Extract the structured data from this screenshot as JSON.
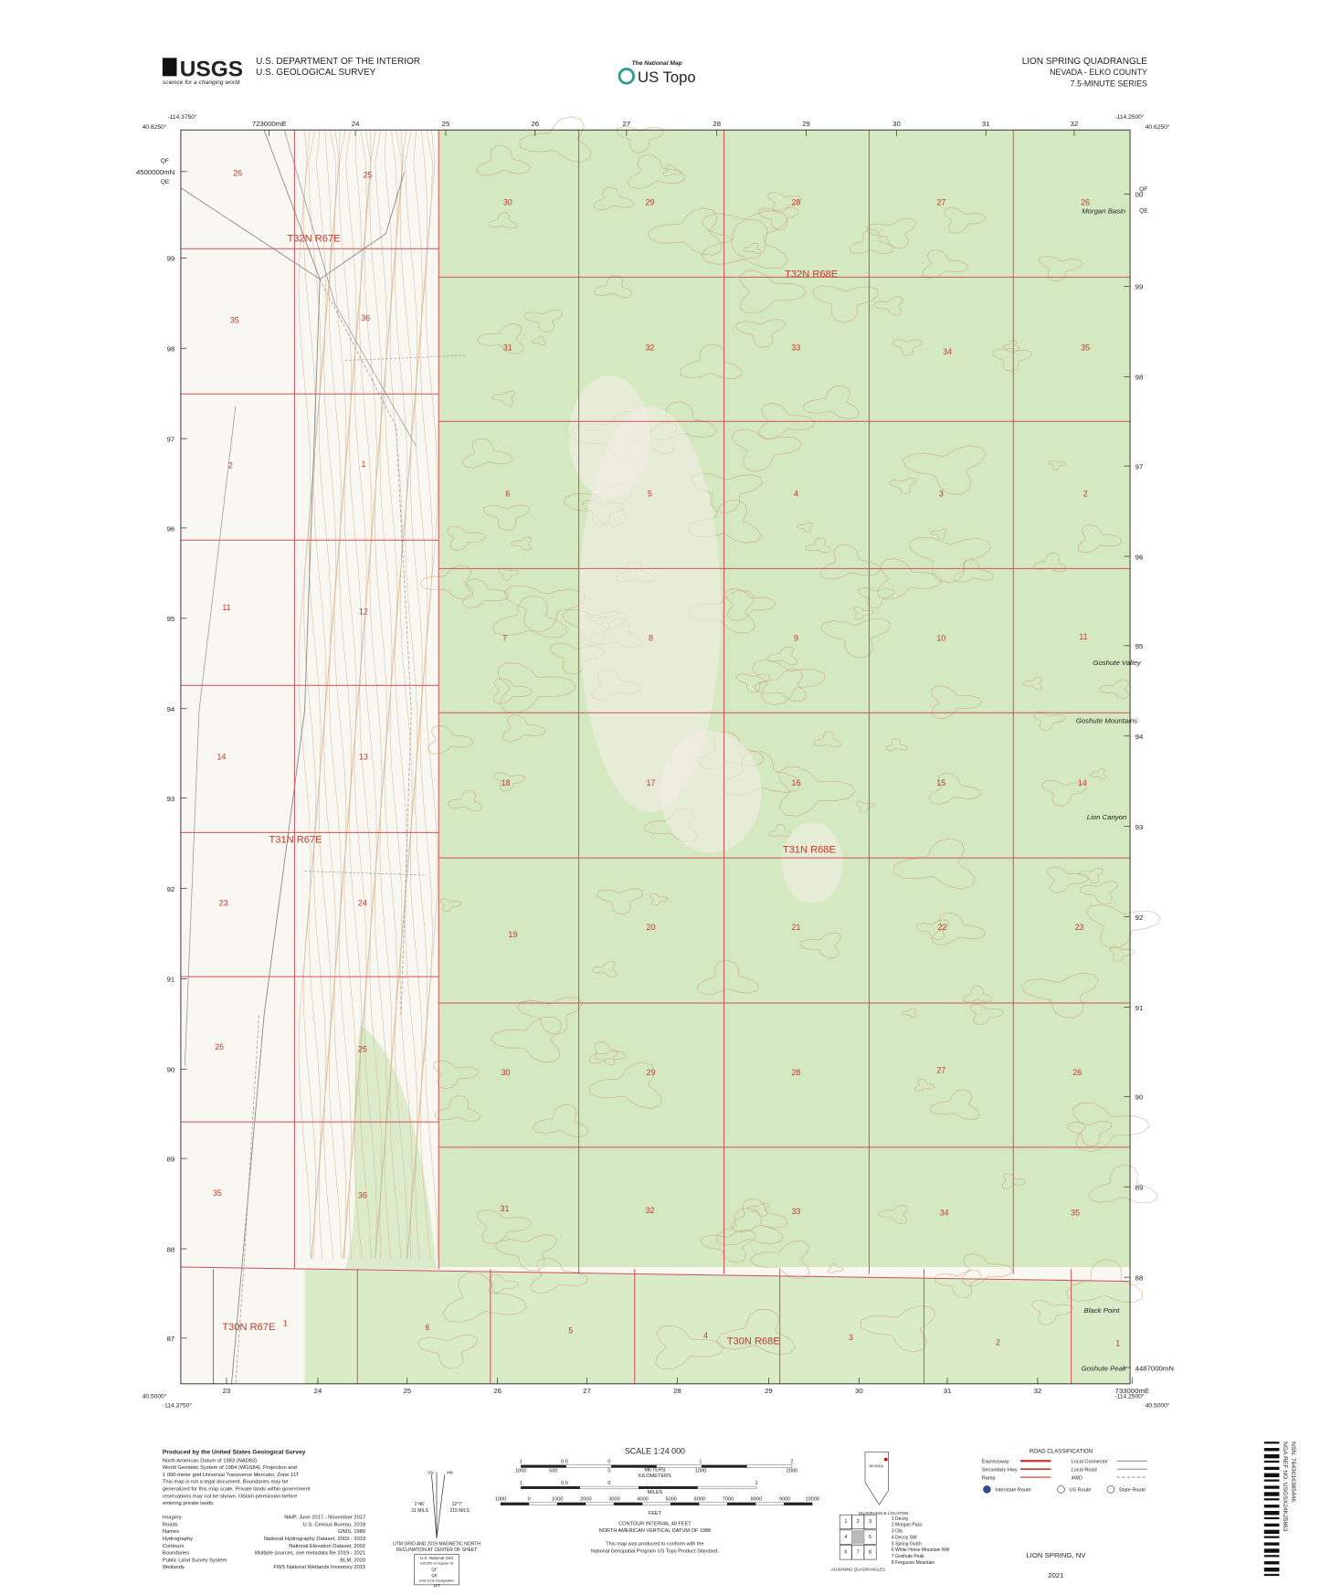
{
  "header": {
    "usgs_logo": "USGS",
    "usgs_tagline": "science for a changing world",
    "agency_line1": "U.S. DEPARTMENT OF THE INTERIOR",
    "agency_line2": "U.S. GEOLOGICAL SURVEY",
    "national_map": "The National Map",
    "us_topo": "US Topo",
    "quad_title": "LION SPRING QUADRANGLE",
    "state_county": "NEVADA - ELKO COUNTY",
    "series": "7.5-MINUTE SERIES"
  },
  "map": {
    "corners": {
      "nw_lon": "-114.3750°",
      "nw_lat": "40.6250°",
      "ne_lon": "-114.2500°",
      "ne_lat": "40.6250°",
      "sw_lat": "40.5000°",
      "sw_lon": "-114.3750°",
      "se_lon": "-114.2500°",
      "se_lat": "40.5000°"
    },
    "easting_top": [
      "723000mE",
      "24",
      "25",
      "26",
      "27",
      "28",
      "29",
      "30",
      "31",
      "32"
    ],
    "easting_bottom": [
      "23",
      "24",
      "25",
      "26",
      "27",
      "28",
      "29",
      "30",
      "31",
      "32",
      "733000mE"
    ],
    "northing_left": [
      "4500000mN",
      "99",
      "98",
      "97",
      "96",
      "95",
      "94",
      "93",
      "92",
      "91",
      "90",
      "89",
      "88",
      "87"
    ],
    "northing_right": [
      "00",
      "99",
      "98",
      "97",
      "96",
      "95",
      "94",
      "93",
      "92",
      "91",
      "90",
      "89",
      "88",
      "4487000mN"
    ],
    "grid_ids_left": [
      "QF",
      "QE"
    ],
    "grid_ids_right": [
      "QF",
      "QE"
    ],
    "sections": [
      "26",
      "25",
      "30",
      "29",
      "28",
      "27",
      "26",
      "35",
      "36",
      "31",
      "32",
      "33",
      "34",
      "35",
      "2",
      "1",
      "6",
      "5",
      "4",
      "3",
      "2",
      "11",
      "12",
      "7",
      "8",
      "9",
      "10",
      "11",
      "14",
      "13",
      "18",
      "17",
      "16",
      "15",
      "14",
      "23",
      "24",
      "19",
      "20",
      "21",
      "22",
      "23",
      "26",
      "25",
      "30",
      "29",
      "28",
      "27",
      "26",
      "35",
      "36",
      "31",
      "32",
      "33",
      "34",
      "35",
      "1",
      "6",
      "5",
      "4",
      "3",
      "2",
      "1"
    ],
    "townships": [
      "T32N R67E",
      "T32N R68E",
      "T31N R67E",
      "T31N R68E",
      "T30N R67E",
      "T30N R68E"
    ],
    "places": [
      "Morgan Basin",
      "Goshute Valley",
      "Goshute Mountains",
      "Lion Canyon",
      "Black Point",
      "Goshute Peak"
    ]
  },
  "footer": {
    "produced_by": "Produced by the United States Geological Survey",
    "notes": [
      "North American Datum of 1983 (NAD83)",
      "World Geodetic System of 1984 (WGS84). Projection and",
      "1 000-meter grid:Universal Transverse Mercator, Zone 11T",
      "This map is not a legal document. Boundaries may be",
      "generalized for this map scale. Private lands within government",
      "reservations may not be shown. Obtain permission before",
      "entering private lands."
    ],
    "sources": [
      [
        "Imagery",
        "NAIP, June 2017 - November 2017"
      ],
      [
        "Roads",
        "U.S. Census Bureau, 2018"
      ],
      [
        "Names",
        "GNIS, 1980"
      ],
      [
        "Hydrography",
        "National Hydrography Dataset, 2003 - 2019"
      ],
      [
        "Contours",
        "National Elevation Dataset, 2002"
      ],
      [
        "Boundaries",
        "Multiple sources; see metadata file 2019 - 2021"
      ],
      [
        "Public Land Survey System",
        "BLM, 2020"
      ],
      [
        "Wetlands",
        "FWS National Wetlands Inventory 2015"
      ]
    ],
    "declination": {
      "gn": "GN",
      "mn": "MN",
      "grid_angle": "1°46′",
      "grid_mils": "31 MILS",
      "mag_angle": "12°7′",
      "mag_mils": "215 MILS",
      "caption1": "UTM GRID AND 2019 MAGNETIC NORTH",
      "caption2": "DECLINATION AT CENTER OF SHEET"
    },
    "usng": {
      "title": "U.S. National Grid",
      "square_id": "100,000-m Square ID",
      "ids": [
        "QF",
        "QE"
      ],
      "zone_caption": "Grid Zone Designation",
      "zone": "11T"
    },
    "scale": {
      "title": "SCALE 1:24 000",
      "km_ticks": [
        "1",
        "0.5",
        "0",
        "1",
        "2"
      ],
      "km_unit": "KILOMETERS",
      "m_ticks": [
        "1000",
        "500",
        "0",
        "1000",
        "2000"
      ],
      "m_unit": "METERS",
      "mi_ticks": [
        "1",
        "0.5",
        "0",
        "1"
      ],
      "mi_unit": "MILES",
      "ft_ticks": [
        "1000",
        "0",
        "1000",
        "2000",
        "3000",
        "4000",
        "5000",
        "6000",
        "7000",
        "8000",
        "9000",
        "10000"
      ],
      "ft_unit": "FEET"
    },
    "contour": [
      "CONTOUR INTERVAL 40 FEET",
      "NORTH AMERICAN VERTICAL DATUM OF 1988"
    ],
    "conform": [
      "This map was produced to conform with the",
      "National Geospatial Program US Topo Product Standard."
    ],
    "location": {
      "state": "NEVADA",
      "caption": "QUADRANGLE LOCATION"
    },
    "adjoining": {
      "quads": [
        "1 Decoy",
        "2 Morgan Pass",
        "3 Ola",
        "4 Decoy SW",
        "5 Spring Gulch",
        "6 White Horse Mountain NW",
        "7 Goshute Peak",
        "8 Ferguson Mountain"
      ],
      "cells": [
        "1",
        "2",
        "3",
        "4",
        "5",
        "6",
        "7",
        "8"
      ],
      "caption": "ADJOINING QUADRANGLES"
    },
    "roads": {
      "title": "ROAD CLASSIFICATION",
      "left": [
        "Expressway",
        "Secondary Hwy",
        "Ramp"
      ],
      "right": [
        "Local Connector",
        "Local Road",
        "4WD"
      ],
      "routes": [
        "Interstate Route",
        "US Route",
        "State Route"
      ]
    },
    "sheet_name": "LION SPRING, NV",
    "year": "2021",
    "barcode": [
      "NSN. 7643016385446",
      "NGA REF NO. USGSX24K25863"
    ]
  }
}
